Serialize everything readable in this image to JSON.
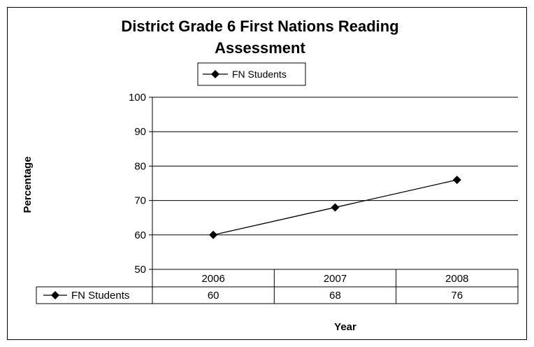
{
  "chart_data": {
    "type": "line",
    "title": "District Grade 6 First Nations Reading Assessment",
    "title_lines": [
      "District Grade 6 First Nations Reading",
      "Assessment"
    ],
    "xlabel": "Year",
    "ylabel": "Percentage",
    "categories": [
      "2006",
      "2007",
      "2008"
    ],
    "series": [
      {
        "name": "FN Students",
        "values": [
          60,
          68,
          76
        ],
        "marker": "diamond",
        "color": "#000000"
      }
    ],
    "ylim": [
      50,
      100
    ],
    "yticks": [
      50,
      60,
      70,
      80,
      90,
      100
    ],
    "grid": true,
    "legend": {
      "position": "top",
      "entries": [
        "FN Students"
      ]
    },
    "data_table": true
  }
}
